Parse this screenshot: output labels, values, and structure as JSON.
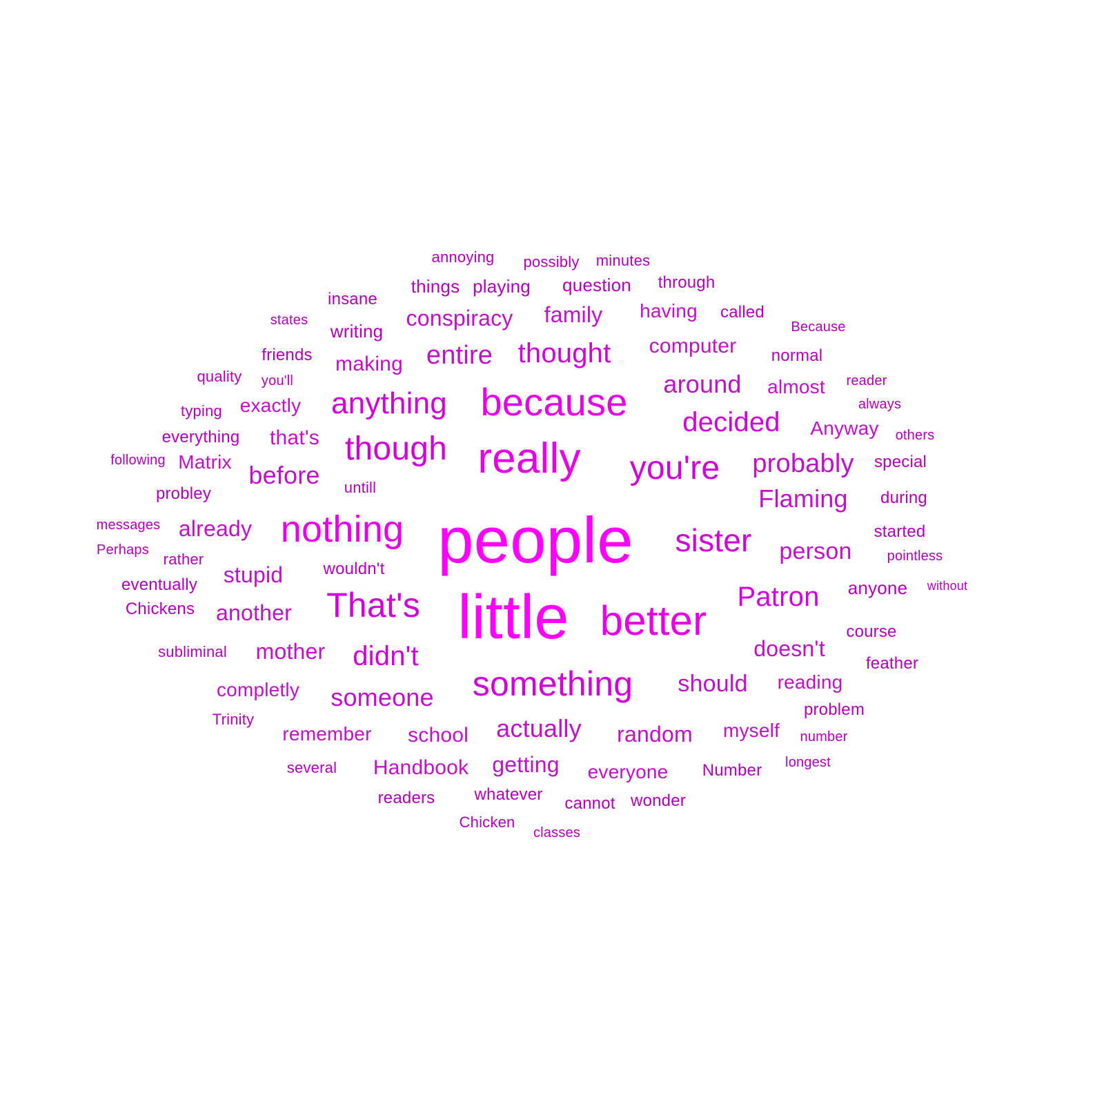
{
  "words": [
    {
      "text": "people",
      "weight": 1.0
    },
    {
      "text": "little",
      "weight": 0.96
    },
    {
      "text": "really",
      "weight": 0.74
    },
    {
      "text": "because",
      "weight": 0.72
    },
    {
      "text": "better",
      "weight": 0.7
    },
    {
      "text": "nothing",
      "weight": 0.66
    },
    {
      "text": "That's",
      "weight": 0.64
    },
    {
      "text": "though",
      "weight": 0.62
    },
    {
      "text": "you're",
      "weight": 0.62
    },
    {
      "text": "something",
      "weight": 0.6
    },
    {
      "text": "anything",
      "weight": 0.55
    },
    {
      "text": "sister",
      "weight": 0.55
    },
    {
      "text": "thought",
      "weight": 0.5
    },
    {
      "text": "decided",
      "weight": 0.5
    },
    {
      "text": "didn't",
      "weight": 0.5
    },
    {
      "text": "Patron",
      "weight": 0.48
    },
    {
      "text": "entire",
      "weight": 0.47
    },
    {
      "text": "probably",
      "weight": 0.47
    },
    {
      "text": "Flaming",
      "weight": 0.45
    },
    {
      "text": "someone",
      "weight": 0.45
    },
    {
      "text": "around",
      "weight": 0.45
    },
    {
      "text": "before",
      "weight": 0.45
    },
    {
      "text": "actually",
      "weight": 0.44
    },
    {
      "text": "person",
      "weight": 0.44
    },
    {
      "text": "should",
      "weight": 0.43
    },
    {
      "text": "conspiracy",
      "weight": 0.4
    },
    {
      "text": "random",
      "weight": 0.4
    },
    {
      "text": "mother",
      "weight": 0.4
    },
    {
      "text": "doesn't",
      "weight": 0.4
    },
    {
      "text": "stupid",
      "weight": 0.4
    },
    {
      "text": "already",
      "weight": 0.38
    },
    {
      "text": "another",
      "weight": 0.37
    },
    {
      "text": "family",
      "weight": 0.37
    },
    {
      "text": "that's",
      "weight": 0.37
    },
    {
      "text": "school",
      "weight": 0.37
    },
    {
      "text": "getting",
      "weight": 0.37
    },
    {
      "text": "computer",
      "weight": 0.36
    },
    {
      "text": "making",
      "weight": 0.36
    },
    {
      "text": "Handbook",
      "weight": 0.34
    },
    {
      "text": "almost",
      "weight": 0.33
    },
    {
      "text": "completly",
      "weight": 0.33
    },
    {
      "text": "remember",
      "weight": 0.33
    },
    {
      "text": "reading",
      "weight": 0.33
    },
    {
      "text": "Anyway",
      "weight": 0.33
    },
    {
      "text": "everyone",
      "weight": 0.33
    },
    {
      "text": "exactly",
      "weight": 0.32
    },
    {
      "text": "myself",
      "weight": 0.32
    },
    {
      "text": "Matrix",
      "weight": 0.31
    },
    {
      "text": "having",
      "weight": 0.31
    },
    {
      "text": "playing",
      "weight": 0.3
    },
    {
      "text": "things",
      "weight": 0.3
    },
    {
      "text": "writing",
      "weight": 0.3
    },
    {
      "text": "question",
      "weight": 0.3
    },
    {
      "text": "anyone",
      "weight": 0.3
    },
    {
      "text": "Number",
      "weight": 0.29
    },
    {
      "text": "insane",
      "weight": 0.29
    },
    {
      "text": "started",
      "weight": 0.29
    },
    {
      "text": "through",
      "weight": 0.28
    },
    {
      "text": "called",
      "weight": 0.28
    },
    {
      "text": "eventually",
      "weight": 0.28
    },
    {
      "text": "friends",
      "weight": 0.28
    },
    {
      "text": "normal",
      "weight": 0.28
    },
    {
      "text": "everything",
      "weight": 0.28
    },
    {
      "text": "wonder",
      "weight": 0.27
    },
    {
      "text": "cannot",
      "weight": 0.27
    },
    {
      "text": "whatever",
      "weight": 0.27
    },
    {
      "text": "readers",
      "weight": 0.27
    },
    {
      "text": "during",
      "weight": 0.27
    },
    {
      "text": "course",
      "weight": 0.26
    },
    {
      "text": "feather",
      "weight": 0.26
    },
    {
      "text": "special",
      "weight": 0.26
    },
    {
      "text": "Chickens",
      "weight": 0.26
    },
    {
      "text": "wouldn't",
      "weight": 0.26
    },
    {
      "text": "problem",
      "weight": 0.26
    },
    {
      "text": "typing",
      "weight": 0.26
    },
    {
      "text": "probley",
      "weight": 0.26
    },
    {
      "text": "subliminal",
      "weight": 0.26
    },
    {
      "text": "rather",
      "weight": 0.26
    },
    {
      "text": "quality",
      "weight": 0.25
    },
    {
      "text": "several",
      "weight": 0.25
    },
    {
      "text": "Trinity",
      "weight": 0.25
    },
    {
      "text": "untill",
      "weight": 0.25
    },
    {
      "text": "annoying",
      "weight": 0.24
    },
    {
      "text": "minutes",
      "weight": 0.24
    },
    {
      "text": "possibly",
      "weight": 0.24
    },
    {
      "text": "Chicken",
      "weight": 0.24
    },
    {
      "text": "classes",
      "weight": 0.23
    },
    {
      "text": "pointless",
      "weight": 0.23
    },
    {
      "text": "number",
      "weight": 0.23
    },
    {
      "text": "always",
      "weight": 0.23
    },
    {
      "text": "states",
      "weight": 0.22
    },
    {
      "text": "Because",
      "weight": 0.22
    },
    {
      "text": "reader",
      "weight": 0.22
    },
    {
      "text": "others",
      "weight": 0.22
    },
    {
      "text": "messages",
      "weight": 0.22
    },
    {
      "text": "following",
      "weight": 0.22
    },
    {
      "text": "you'll",
      "weight": 0.22
    },
    {
      "text": "Perhaps",
      "weight": 0.22
    },
    {
      "text": "longest",
      "weight": 0.22
    },
    {
      "text": "without",
      "weight": 0.21
    }
  ],
  "colors": {
    "background": "#ffffff",
    "word_palette": [
      "#ff00ff",
      "#e600e6",
      "#d000d8",
      "#c010c8",
      "#b000b8"
    ]
  }
}
